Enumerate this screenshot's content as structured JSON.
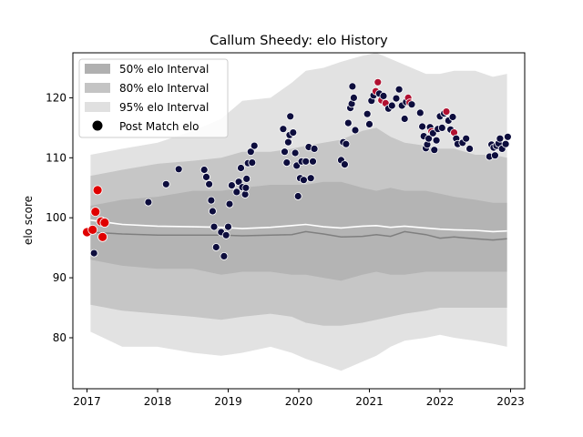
{
  "chart_data": {
    "type": "scatter",
    "title": "Callum Sheedy: elo History",
    "xlabel": "",
    "ylabel": "elo score",
    "xlim": [
      2016.8,
      2023.2
    ],
    "ylim": [
      71.5,
      127.5
    ],
    "x_ticks": [
      2017,
      2018,
      2019,
      2020,
      2021,
      2022,
      2023
    ],
    "x_tick_labels": [
      "2017",
      "2018",
      "2019",
      "2020",
      "2021",
      "2022",
      "2023"
    ],
    "y_ticks": [
      80,
      90,
      100,
      110,
      120
    ],
    "y_tick_labels": [
      "80",
      "90",
      "100",
      "110",
      "120"
    ],
    "legend_position": "upper-left",
    "legend": [
      {
        "label": "50% elo Interval",
        "kind": "band",
        "color": "#b0b0b0"
      },
      {
        "label": "80% elo Interval",
        "kind": "band",
        "color": "#c4c4c4"
      },
      {
        "label": "95% elo Interval",
        "kind": "band",
        "color": "#e0e0e0"
      },
      {
        "label": "Post Match elo",
        "kind": "marker",
        "color": "#000000"
      }
    ],
    "colors": {
      "band50": "#b4b4b4",
      "band80": "#c6c6c6",
      "band95": "#e2e2e2",
      "median_line": "#7f7f7f",
      "mean_line": "#ffffff",
      "point_dark": "#0d0d3d",
      "point_red": "#e00000",
      "point_mid": "#b01030"
    },
    "band_x": [
      2017.05,
      2017.5,
      2018.0,
      2018.5,
      2018.9,
      2019.2,
      2019.6,
      2019.9,
      2020.1,
      2020.35,
      2020.6,
      2020.9,
      2021.1,
      2021.3,
      2021.5,
      2021.8,
      2022.0,
      2022.2,
      2022.5,
      2022.75,
      2022.95
    ],
    "band95_upper": [
      110.5,
      111.5,
      112.5,
      114.5,
      116.5,
      119.5,
      120.0,
      122.5,
      124.5,
      125.0,
      126.0,
      127.0,
      127.5,
      126.5,
      125.5,
      124.0,
      124.0,
      124.5,
      124.5,
      123.5,
      124.0
    ],
    "band95_lower": [
      81.0,
      78.5,
      78.5,
      77.5,
      77.0,
      77.5,
      78.5,
      77.5,
      76.5,
      75.5,
      74.5,
      76.0,
      77.0,
      78.5,
      79.5,
      80.0,
      80.5,
      80.0,
      79.5,
      79.0,
      78.5
    ],
    "band80_upper": [
      107.0,
      108.0,
      109.0,
      109.5,
      110.0,
      111.0,
      111.0,
      111.5,
      112.0,
      112.5,
      113.0,
      114.5,
      115.0,
      113.5,
      112.5,
      112.0,
      111.5,
      111.5,
      110.5,
      110.5,
      110.0
    ],
    "band80_lower": [
      85.5,
      84.5,
      84.0,
      83.5,
      83.0,
      83.5,
      84.0,
      83.5,
      82.5,
      82.0,
      82.0,
      82.5,
      83.0,
      83.5,
      84.0,
      84.5,
      85.0,
      85.0,
      85.0,
      85.0,
      85.0
    ],
    "band50_upper": [
      102.0,
      103.0,
      103.5,
      104.5,
      104.5,
      105.0,
      105.5,
      105.5,
      105.5,
      106.0,
      106.0,
      105.0,
      104.5,
      105.0,
      104.5,
      104.5,
      104.0,
      103.5,
      103.0,
      102.5,
      102.5
    ],
    "band50_lower": [
      93.0,
      92.0,
      91.5,
      91.5,
      90.5,
      91.0,
      91.0,
      90.5,
      90.5,
      90.0,
      89.5,
      90.5,
      91.0,
      90.5,
      90.5,
      91.0,
      91.0,
      91.0,
      91.0,
      91.0,
      91.0
    ],
    "median_line": [
      97.6,
      97.3,
      97.1,
      97.1,
      97.1,
      97.0,
      97.1,
      97.2,
      97.7,
      97.3,
      96.8,
      96.9,
      97.2,
      96.9,
      97.7,
      97.2,
      96.6,
      96.8,
      96.5,
      96.3,
      96.5
    ],
    "mean_line": [
      99.6,
      98.9,
      98.6,
      98.5,
      98.4,
      98.2,
      98.4,
      98.7,
      98.9,
      98.5,
      98.3,
      98.6,
      98.7,
      98.4,
      98.6,
      98.3,
      98.1,
      98.0,
      97.9,
      97.7,
      97.8
    ],
    "points": [
      {
        "x": 2017.0,
        "y": 97.6,
        "c": "red"
      },
      {
        "x": 2017.08,
        "y": 98.0,
        "c": "red"
      },
      {
        "x": 2017.12,
        "y": 101.0,
        "c": "red"
      },
      {
        "x": 2017.15,
        "y": 104.6,
        "c": "red"
      },
      {
        "x": 2017.2,
        "y": 99.4,
        "c": "red"
      },
      {
        "x": 2017.25,
        "y": 99.2,
        "c": "red"
      },
      {
        "x": 2017.22,
        "y": 96.8,
        "c": "red"
      },
      {
        "x": 2017.1,
        "y": 94.1,
        "c": "dark"
      },
      {
        "x": 2017.87,
        "y": 102.6,
        "c": "dark"
      },
      {
        "x": 2018.12,
        "y": 105.6,
        "c": "dark"
      },
      {
        "x": 2018.3,
        "y": 108.1,
        "c": "dark"
      },
      {
        "x": 2018.66,
        "y": 108.0,
        "c": "dark"
      },
      {
        "x": 2018.69,
        "y": 106.8,
        "c": "dark"
      },
      {
        "x": 2018.73,
        "y": 105.6,
        "c": "dark"
      },
      {
        "x": 2018.76,
        "y": 102.9,
        "c": "dark"
      },
      {
        "x": 2018.78,
        "y": 101.1,
        "c": "dark"
      },
      {
        "x": 2018.8,
        "y": 98.5,
        "c": "dark"
      },
      {
        "x": 2018.83,
        "y": 95.1,
        "c": "dark"
      },
      {
        "x": 2018.9,
        "y": 97.6,
        "c": "dark"
      },
      {
        "x": 2018.94,
        "y": 93.6,
        "c": "dark"
      },
      {
        "x": 2018.97,
        "y": 97.1,
        "c": "dark"
      },
      {
        "x": 2019.0,
        "y": 98.5,
        "c": "dark"
      },
      {
        "x": 2019.02,
        "y": 102.3,
        "c": "dark"
      },
      {
        "x": 2019.05,
        "y": 105.4,
        "c": "dark"
      },
      {
        "x": 2019.12,
        "y": 104.3,
        "c": "dark"
      },
      {
        "x": 2019.15,
        "y": 106.0,
        "c": "dark"
      },
      {
        "x": 2019.18,
        "y": 108.3,
        "c": "dark"
      },
      {
        "x": 2019.2,
        "y": 105.1,
        "c": "dark"
      },
      {
        "x": 2019.24,
        "y": 103.9,
        "c": "dark"
      },
      {
        "x": 2019.25,
        "y": 105.0,
        "c": "dark"
      },
      {
        "x": 2019.26,
        "y": 106.5,
        "c": "dark"
      },
      {
        "x": 2019.28,
        "y": 109.1,
        "c": "dark"
      },
      {
        "x": 2019.32,
        "y": 111.0,
        "c": "dark"
      },
      {
        "x": 2019.34,
        "y": 109.2,
        "c": "dark"
      },
      {
        "x": 2019.37,
        "y": 112.0,
        "c": "dark"
      },
      {
        "x": 2019.78,
        "y": 114.8,
        "c": "dark"
      },
      {
        "x": 2019.8,
        "y": 111.0,
        "c": "dark"
      },
      {
        "x": 2019.83,
        "y": 109.2,
        "c": "dark"
      },
      {
        "x": 2019.85,
        "y": 112.6,
        "c": "dark"
      },
      {
        "x": 2019.87,
        "y": 113.8,
        "c": "dark"
      },
      {
        "x": 2019.88,
        "y": 116.9,
        "c": "dark"
      },
      {
        "x": 2019.92,
        "y": 114.2,
        "c": "dark"
      },
      {
        "x": 2019.95,
        "y": 110.8,
        "c": "dark"
      },
      {
        "x": 2019.97,
        "y": 108.7,
        "c": "dark"
      },
      {
        "x": 2019.99,
        "y": 103.6,
        "c": "dark"
      },
      {
        "x": 2020.02,
        "y": 106.6,
        "c": "dark"
      },
      {
        "x": 2020.04,
        "y": 109.4,
        "c": "dark"
      },
      {
        "x": 2020.07,
        "y": 106.3,
        "c": "dark"
      },
      {
        "x": 2020.1,
        "y": 109.4,
        "c": "dark"
      },
      {
        "x": 2020.14,
        "y": 111.8,
        "c": "dark"
      },
      {
        "x": 2020.17,
        "y": 106.6,
        "c": "dark"
      },
      {
        "x": 2020.2,
        "y": 109.4,
        "c": "dark"
      },
      {
        "x": 2020.22,
        "y": 111.5,
        "c": "dark"
      },
      {
        "x": 2020.6,
        "y": 109.6,
        "c": "dark"
      },
      {
        "x": 2020.63,
        "y": 112.6,
        "c": "dark"
      },
      {
        "x": 2020.65,
        "y": 108.9,
        "c": "dark"
      },
      {
        "x": 2020.67,
        "y": 112.3,
        "c": "dark"
      },
      {
        "x": 2020.7,
        "y": 115.8,
        "c": "dark"
      },
      {
        "x": 2020.73,
        "y": 118.3,
        "c": "dark"
      },
      {
        "x": 2020.75,
        "y": 119.0,
        "c": "dark"
      },
      {
        "x": 2020.76,
        "y": 121.9,
        "c": "dark"
      },
      {
        "x": 2020.78,
        "y": 120.0,
        "c": "dark"
      },
      {
        "x": 2020.8,
        "y": 114.6,
        "c": "dark"
      },
      {
        "x": 2020.97,
        "y": 117.3,
        "c": "dark"
      },
      {
        "x": 2021.0,
        "y": 115.6,
        "c": "dark"
      },
      {
        "x": 2021.03,
        "y": 119.5,
        "c": "dark"
      },
      {
        "x": 2021.06,
        "y": 120.4,
        "c": "dark"
      },
      {
        "x": 2021.09,
        "y": 121.1,
        "c": "mid"
      },
      {
        "x": 2021.12,
        "y": 122.6,
        "c": "mid"
      },
      {
        "x": 2021.14,
        "y": 120.7,
        "c": "dark"
      },
      {
        "x": 2021.17,
        "y": 119.6,
        "c": "mid"
      },
      {
        "x": 2021.2,
        "y": 120.3,
        "c": "dark"
      },
      {
        "x": 2021.23,
        "y": 119.1,
        "c": "mid"
      },
      {
        "x": 2021.27,
        "y": 118.2,
        "c": "dark"
      },
      {
        "x": 2021.32,
        "y": 118.7,
        "c": "dark"
      },
      {
        "x": 2021.38,
        "y": 119.9,
        "c": "dark"
      },
      {
        "x": 2021.42,
        "y": 121.4,
        "c": "dark"
      },
      {
        "x": 2021.46,
        "y": 118.7,
        "c": "dark"
      },
      {
        "x": 2021.5,
        "y": 116.5,
        "c": "dark"
      },
      {
        "x": 2021.52,
        "y": 119.3,
        "c": "dark"
      },
      {
        "x": 2021.55,
        "y": 120.0,
        "c": "mid"
      },
      {
        "x": 2021.57,
        "y": 119.2,
        "c": "mid"
      },
      {
        "x": 2021.6,
        "y": 118.9,
        "c": "dark"
      },
      {
        "x": 2021.72,
        "y": 117.5,
        "c": "dark"
      },
      {
        "x": 2021.75,
        "y": 115.2,
        "c": "dark"
      },
      {
        "x": 2021.77,
        "y": 113.6,
        "c": "dark"
      },
      {
        "x": 2021.8,
        "y": 111.6,
        "c": "dark"
      },
      {
        "x": 2021.82,
        "y": 112.2,
        "c": "dark"
      },
      {
        "x": 2021.84,
        "y": 113.2,
        "c": "dark"
      },
      {
        "x": 2021.86,
        "y": 115.1,
        "c": "dark"
      },
      {
        "x": 2021.88,
        "y": 114.4,
        "c": "mid"
      },
      {
        "x": 2021.9,
        "y": 114.1,
        "c": "dark"
      },
      {
        "x": 2021.92,
        "y": 111.3,
        "c": "dark"
      },
      {
        "x": 2021.95,
        "y": 112.9,
        "c": "dark"
      },
      {
        "x": 2021.97,
        "y": 114.8,
        "c": "dark"
      },
      {
        "x": 2022.0,
        "y": 116.9,
        "c": "dark"
      },
      {
        "x": 2022.03,
        "y": 115.0,
        "c": "dark"
      },
      {
        "x": 2022.06,
        "y": 117.4,
        "c": "dark"
      },
      {
        "x": 2022.09,
        "y": 117.7,
        "c": "mid"
      },
      {
        "x": 2022.12,
        "y": 116.2,
        "c": "dark"
      },
      {
        "x": 2022.15,
        "y": 114.7,
        "c": "dark"
      },
      {
        "x": 2022.18,
        "y": 116.8,
        "c": "dark"
      },
      {
        "x": 2022.2,
        "y": 114.2,
        "c": "mid"
      },
      {
        "x": 2022.23,
        "y": 113.2,
        "c": "dark"
      },
      {
        "x": 2022.25,
        "y": 112.3,
        "c": "dark"
      },
      {
        "x": 2022.32,
        "y": 112.5,
        "c": "dark"
      },
      {
        "x": 2022.37,
        "y": 113.2,
        "c": "dark"
      },
      {
        "x": 2022.42,
        "y": 111.5,
        "c": "dark"
      },
      {
        "x": 2022.7,
        "y": 110.2,
        "c": "dark"
      },
      {
        "x": 2022.73,
        "y": 112.2,
        "c": "dark"
      },
      {
        "x": 2022.76,
        "y": 111.7,
        "c": "dark"
      },
      {
        "x": 2022.78,
        "y": 110.4,
        "c": "dark"
      },
      {
        "x": 2022.8,
        "y": 112.0,
        "c": "dark"
      },
      {
        "x": 2022.83,
        "y": 112.4,
        "c": "dark"
      },
      {
        "x": 2022.85,
        "y": 113.2,
        "c": "dark"
      },
      {
        "x": 2022.88,
        "y": 111.5,
        "c": "dark"
      },
      {
        "x": 2022.93,
        "y": 112.3,
        "c": "dark"
      },
      {
        "x": 2022.96,
        "y": 113.5,
        "c": "dark"
      }
    ]
  }
}
